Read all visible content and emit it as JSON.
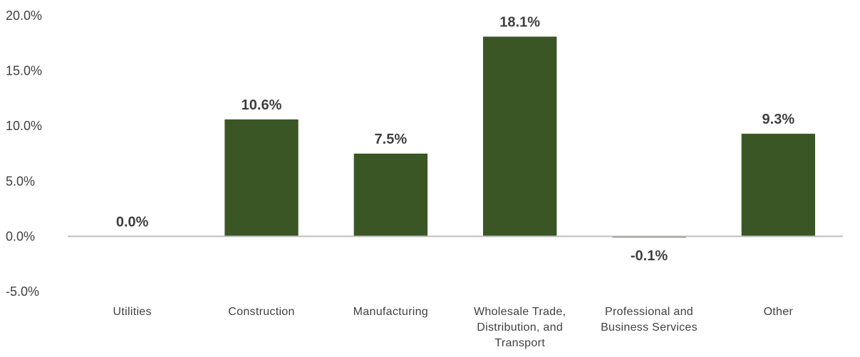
{
  "chart_data": {
    "type": "bar",
    "categories": [
      [
        "Utilities"
      ],
      [
        "Construction"
      ],
      [
        "Manufacturing"
      ],
      [
        "Wholesale Trade,",
        "Distribution, and",
        "Transport"
      ],
      [
        "Professional and",
        "Business Services"
      ],
      [
        "Other"
      ]
    ],
    "values": [
      0.0,
      10.6,
      7.5,
      18.1,
      -0.1,
      9.3
    ],
    "data_labels": [
      "0.0%",
      "10.6%",
      "7.5%",
      "18.1%",
      "-0.1%",
      "9.3%"
    ],
    "yticks": [
      20,
      15,
      10,
      5,
      0,
      -5
    ],
    "ytick_labels": [
      "20.0%",
      "15.0%",
      "10.0%",
      "5.0%",
      "0.0%",
      "-5.0%"
    ],
    "ylim": [
      -5,
      20
    ],
    "bar_color": "#3b5625",
    "axis_color": "#bfbfbf",
    "grid": false,
    "legend": "none"
  }
}
